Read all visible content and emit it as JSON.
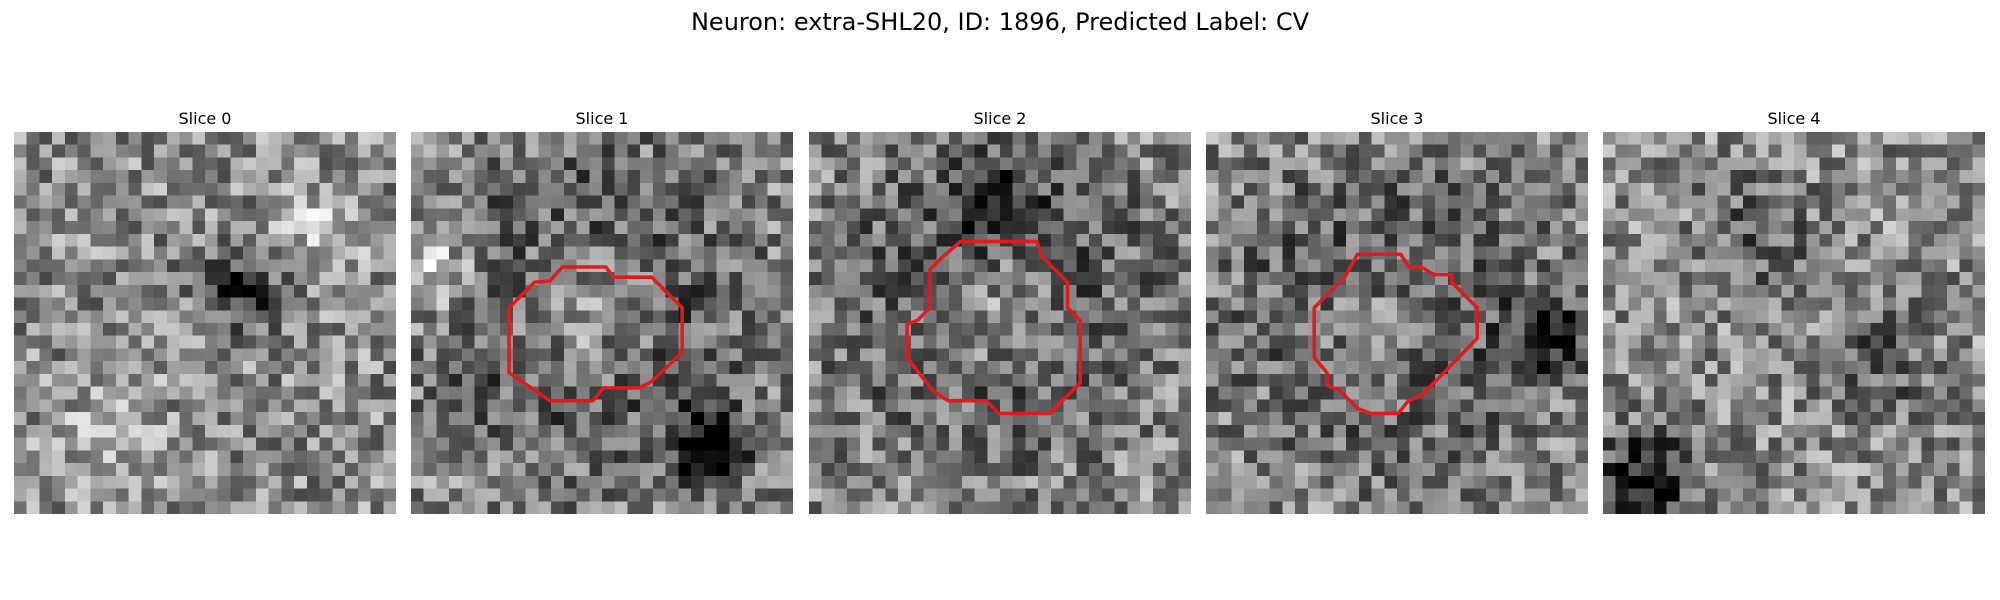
{
  "figure": {
    "title": "Neuron: extra-SHL20, ID: 1896, Predicted Label: CV"
  },
  "grid_size": 30,
  "colormap": "gray",
  "contour_color": "#e31a1c",
  "slices": [
    {
      "title": "Slice 0",
      "features": [
        [
          18,
          12,
          2.5,
          -0.35
        ],
        [
          8,
          24,
          3.0,
          0.15
        ],
        [
          24,
          8,
          2.5,
          0.2
        ]
      ],
      "contour": []
    },
    {
      "title": "Slice 1",
      "features": [
        [
          13.5,
          14,
          7.5,
          -0.5
        ],
        [
          13.5,
          14,
          4.5,
          0.55
        ],
        [
          23.5,
          25,
          2.0,
          -0.7
        ],
        [
          1.5,
          11,
          2.5,
          0.35
        ]
      ],
      "contour": [
        [
          7.7,
          13.8
        ],
        [
          9.7,
          11.8
        ],
        [
          10.9,
          11.7
        ],
        [
          11.9,
          10.6
        ],
        [
          15.3,
          10.6
        ],
        [
          15.9,
          11.4
        ],
        [
          18.9,
          11.4
        ],
        [
          20.3,
          12.8
        ],
        [
          21.3,
          13.8
        ],
        [
          21.3,
          17.3
        ],
        [
          18.9,
          19.6
        ],
        [
          17.9,
          20.1
        ],
        [
          15.1,
          20.1
        ],
        [
          14.3,
          21.1
        ],
        [
          10.9,
          21.1
        ],
        [
          7.7,
          18.9
        ],
        [
          7.7,
          13.8
        ]
      ]
    },
    {
      "title": "Slice 2",
      "features": [
        [
          14.5,
          13,
          7.5,
          -0.45
        ],
        [
          14.5,
          13.5,
          4.5,
          0.45
        ],
        [
          14.5,
          6,
          2.0,
          -0.4
        ]
      ],
      "contour": [
        [
          10.5,
          9.8
        ],
        [
          9.5,
          10.8
        ],
        [
          9.5,
          13.8
        ],
        [
          8.5,
          14.8
        ],
        [
          7.7,
          15.1
        ],
        [
          7.7,
          17.7
        ],
        [
          9.7,
          20.3
        ],
        [
          10.9,
          21.1
        ],
        [
          13.9,
          21.1
        ],
        [
          14.9,
          22.1
        ],
        [
          18.9,
          22.1
        ],
        [
          20.3,
          20.7
        ],
        [
          21.3,
          19.7
        ],
        [
          21.3,
          14.8
        ],
        [
          20.3,
          13.8
        ],
        [
          20.3,
          11.8
        ],
        [
          19.3,
          10.8
        ],
        [
          18.3,
          9.8
        ],
        [
          17.9,
          8.6
        ],
        [
          11.9,
          8.6
        ],
        [
          10.5,
          9.8
        ]
      ]
    },
    {
      "title": "Slice 3",
      "features": [
        [
          14,
          14.5,
          7.5,
          -0.4
        ],
        [
          13.5,
          15,
          4.5,
          0.35
        ],
        [
          27,
          16,
          2.0,
          -0.4
        ]
      ],
      "contour": [
        [
          10.9,
          11.4
        ],
        [
          10.5,
          11.8
        ],
        [
          9.5,
          12.8
        ],
        [
          8.5,
          13.8
        ],
        [
          8.5,
          17.7
        ],
        [
          9.5,
          18.9
        ],
        [
          9.5,
          19.9
        ],
        [
          10.5,
          20.3
        ],
        [
          11.9,
          21.7
        ],
        [
          12.9,
          22.1
        ],
        [
          15.1,
          22.1
        ],
        [
          15.9,
          21.1
        ],
        [
          16.9,
          20.7
        ],
        [
          18.3,
          19.3
        ],
        [
          21.3,
          16.2
        ],
        [
          21.3,
          13.8
        ],
        [
          20.3,
          12.8
        ],
        [
          19.3,
          11.8
        ],
        [
          19.3,
          11.2
        ],
        [
          17.9,
          11.2
        ],
        [
          16.9,
          10.6
        ],
        [
          15.9,
          10.6
        ],
        [
          15.3,
          9.6
        ],
        [
          11.9,
          9.6
        ],
        [
          10.9,
          11.4
        ]
      ]
    },
    {
      "title": "Slice 4",
      "features": [
        [
          3.5,
          27,
          2.5,
          -0.5
        ],
        [
          12,
          8,
          3.0,
          -0.2
        ],
        [
          22,
          18,
          3.0,
          -0.2
        ]
      ],
      "contour": []
    }
  ]
}
